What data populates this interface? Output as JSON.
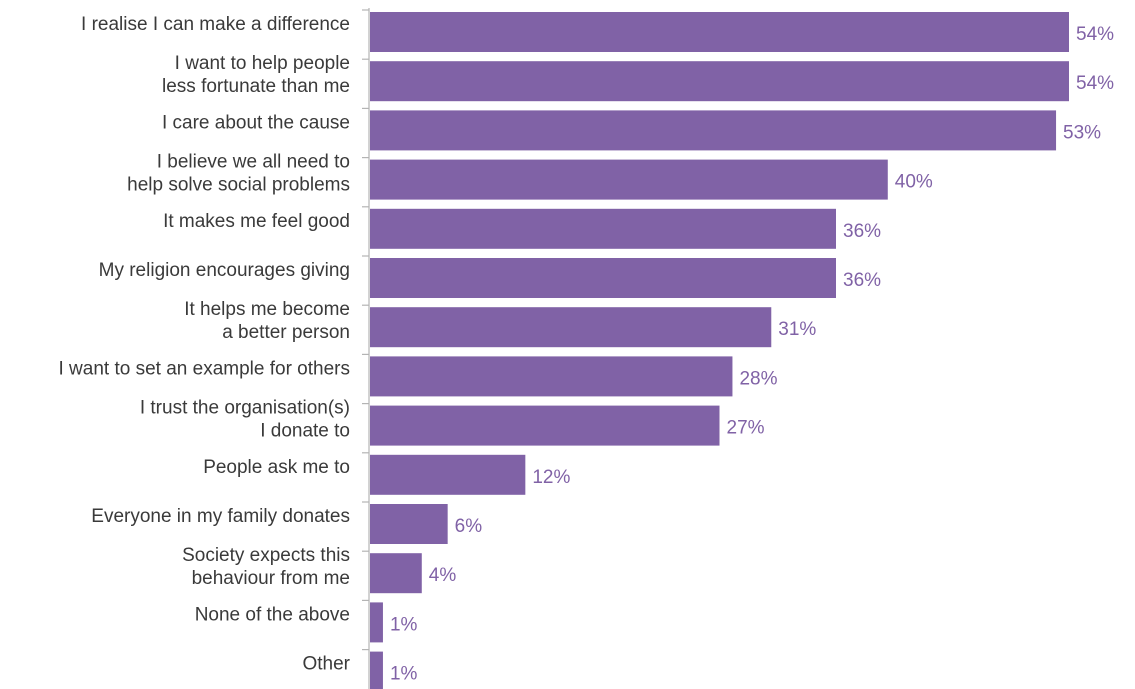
{
  "chart_data": {
    "type": "bar",
    "orientation": "horizontal",
    "categories": [
      [
        "I realise I can make a difference"
      ],
      [
        "I want to help people",
        "less fortunate than me"
      ],
      [
        "I care about the cause"
      ],
      [
        "I believe we all need to",
        "help solve social problems"
      ],
      [
        "It makes me feel good"
      ],
      [
        "My religion encourages giving"
      ],
      [
        "It helps me become",
        "a better person"
      ],
      [
        "I want to set an example for others"
      ],
      [
        "I trust the organisation(s)",
        "I donate to"
      ],
      [
        "People ask me to"
      ],
      [
        "Everyone in my family donates"
      ],
      [
        "Society expects this",
        "behaviour from me"
      ],
      [
        "None of the above"
      ],
      [
        "Other"
      ]
    ],
    "values": [
      54,
      54,
      53,
      40,
      36,
      36,
      31,
      28,
      27,
      12,
      6,
      4,
      1,
      1
    ],
    "value_labels": [
      "54%",
      "54%",
      "53%",
      "40%",
      "36%",
      "36%",
      "31%",
      "28%",
      "27%",
      "12%",
      "6%",
      "4%",
      "1%",
      "1%"
    ],
    "unit": "%",
    "xlim": [
      0,
      54
    ],
    "grid": false,
    "legend": "none",
    "colors": {
      "bar": "#8062a6",
      "value_text": "#8062a6",
      "axis": "#b4b4b4",
      "category_text": "#3a3a3a"
    }
  }
}
